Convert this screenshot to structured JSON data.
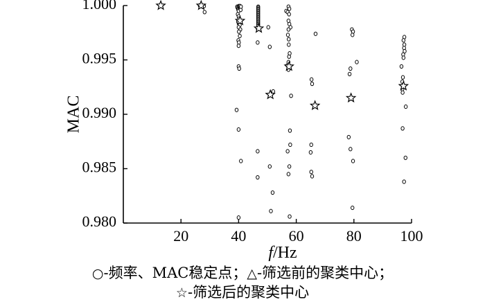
{
  "chart_data": {
    "type": "scatter",
    "ylabel": "MAC",
    "xlabel_italic": "f",
    "xlabel_unit": "/Hz",
    "xlim": [
      0,
      100
    ],
    "ylim": [
      0.98,
      1.0
    ],
    "x_ticks": [
      20,
      40,
      60,
      80,
      100
    ],
    "y_ticks": [
      0.98,
      0.985,
      0.99,
      0.995,
      1.0
    ],
    "y_tick_labels": [
      "0.980",
      "0.985",
      "0.990",
      "0.995",
      "1.000"
    ],
    "grid": false,
    "series": [
      {
        "marker": "circle",
        "points": [
          [
            13.0,
            1.0
          ],
          [
            26.5,
            1.0
          ],
          [
            27.5,
            0.9999
          ],
          [
            28.0,
            0.99995
          ],
          [
            28.2,
            0.9994
          ],
          [
            39.5,
            0.9999
          ],
          [
            39.6,
            0.9998
          ],
          [
            39.8,
            0.9997
          ],
          [
            39.9,
            0.9996
          ],
          [
            40.0,
            0.9995
          ],
          [
            40.1,
            0.99995
          ],
          [
            40.2,
            0.9999
          ],
          [
            40.4,
            0.9998
          ],
          [
            40.5,
            0.99995
          ],
          [
            40.6,
            0.9997
          ],
          [
            40.7,
            0.9996
          ],
          [
            40.8,
            0.9999
          ],
          [
            39.7,
            0.9992
          ],
          [
            40.0,
            0.999
          ],
          [
            40.2,
            0.9988
          ],
          [
            39.8,
            0.9985
          ],
          [
            40.4,
            0.9982
          ],
          [
            40.0,
            0.998
          ],
          [
            40.6,
            0.9978
          ],
          [
            40.1,
            0.9976
          ],
          [
            40.4,
            0.9972
          ],
          [
            39.9,
            0.9968
          ],
          [
            40.1,
            0.9966
          ],
          [
            40.0,
            0.9963
          ],
          [
            40.0,
            0.9944
          ],
          [
            40.2,
            0.9942
          ],
          [
            39.3,
            0.9904
          ],
          [
            40.0,
            0.9886
          ],
          [
            40.8,
            0.9857
          ],
          [
            40.0,
            0.9805
          ],
          [
            46.8,
            0.9999
          ],
          [
            46.8,
            0.9998
          ],
          [
            46.8,
            0.9997
          ],
          [
            46.8,
            0.9996
          ],
          [
            46.8,
            0.9995
          ],
          [
            46.8,
            0.9994
          ],
          [
            46.8,
            0.9993
          ],
          [
            46.8,
            0.9992
          ],
          [
            46.8,
            0.9991
          ],
          [
            46.8,
            0.999
          ],
          [
            46.8,
            0.9989
          ],
          [
            46.8,
            0.9988
          ],
          [
            46.8,
            0.9987
          ],
          [
            46.8,
            0.9986
          ],
          [
            46.8,
            0.9985
          ],
          [
            46.8,
            0.9984
          ],
          [
            46.8,
            0.9983
          ],
          [
            46.8,
            0.9982
          ],
          [
            46.8,
            0.9981
          ],
          [
            46.6,
            0.9979
          ],
          [
            46.6,
            0.9966
          ],
          [
            46.6,
            0.9866
          ],
          [
            46.6,
            0.9842
          ],
          [
            50.3,
            0.998
          ],
          [
            50.8,
            0.9962
          ],
          [
            51.5,
            0.9919
          ],
          [
            52.0,
            0.9921
          ],
          [
            50.8,
            0.9852
          ],
          [
            51.8,
            0.9828
          ],
          [
            51.2,
            0.9811
          ],
          [
            56.5,
            0.9995
          ],
          [
            57.3,
            0.9999
          ],
          [
            57.6,
            0.9997
          ],
          [
            57.0,
            0.9994
          ],
          [
            57.5,
            0.9992
          ],
          [
            57.3,
            0.9986
          ],
          [
            57.6,
            0.9983
          ],
          [
            58.0,
            0.998
          ],
          [
            57.3,
            0.9978
          ],
          [
            57.1,
            0.9973
          ],
          [
            57.4,
            0.9969
          ],
          [
            57.4,
            0.9964
          ],
          [
            57.7,
            0.9956
          ],
          [
            57.5,
            0.9953
          ],
          [
            57.3,
            0.9948
          ],
          [
            56.9,
            0.9945
          ],
          [
            57.3,
            0.9941
          ],
          [
            58.2,
            0.9917
          ],
          [
            57.8,
            0.9885
          ],
          [
            57.9,
            0.9872
          ],
          [
            57.0,
            0.9866
          ],
          [
            57.6,
            0.9852
          ],
          [
            57.3,
            0.9845
          ],
          [
            57.7,
            0.9806
          ],
          [
            66.7,
            0.9974
          ],
          [
            65.3,
            0.9932
          ],
          [
            65.5,
            0.9928
          ],
          [
            65.2,
            0.9872
          ],
          [
            65.0,
            0.9865
          ],
          [
            65.2,
            0.9847
          ],
          [
            65.5,
            0.9843
          ],
          [
            79.3,
            0.9978
          ],
          [
            79.7,
            0.9976
          ],
          [
            79.5,
            0.9973
          ],
          [
            81.0,
            0.9948
          ],
          [
            78.8,
            0.9942
          ],
          [
            78.5,
            0.9937
          ],
          [
            78.2,
            0.9879
          ],
          [
            78.8,
            0.9868
          ],
          [
            79.7,
            0.9857
          ],
          [
            79.5,
            0.9814
          ],
          [
            97.5,
            0.9971
          ],
          [
            97.2,
            0.9968
          ],
          [
            97.5,
            0.9964
          ],
          [
            97.4,
            0.9961
          ],
          [
            97.6,
            0.9958
          ],
          [
            97.1,
            0.9955
          ],
          [
            97.2,
            0.9952
          ],
          [
            96.5,
            0.9944
          ],
          [
            97.0,
            0.9934
          ],
          [
            96.8,
            0.993
          ],
          [
            96.8,
            0.9923
          ],
          [
            96.9,
            0.992
          ],
          [
            98.0,
            0.9907
          ],
          [
            96.9,
            0.9887
          ],
          [
            97.9,
            0.986
          ],
          [
            97.4,
            0.9838
          ]
        ]
      },
      {
        "marker": "star",
        "points": [
          [
            13.0,
            1.0
          ],
          [
            27.0,
            1.0
          ],
          [
            40.5,
            0.9986
          ],
          [
            47.0,
            0.9979
          ],
          [
            51.0,
            0.9918
          ],
          [
            57.5,
            0.9944
          ],
          [
            66.5,
            0.9908
          ],
          [
            79.0,
            0.9915
          ],
          [
            97.2,
            0.9926
          ]
        ]
      }
    ]
  },
  "legend": {
    "line1": {
      "circle_symbol": "○",
      "circle_text": "-频率、MAC稳定点；",
      "triangle_symbol": "△",
      "triangle_text": "-筛选前的聚类中心；"
    },
    "line2": {
      "star_symbol": "☆",
      "star_text": "-筛选后的聚类中心"
    }
  }
}
